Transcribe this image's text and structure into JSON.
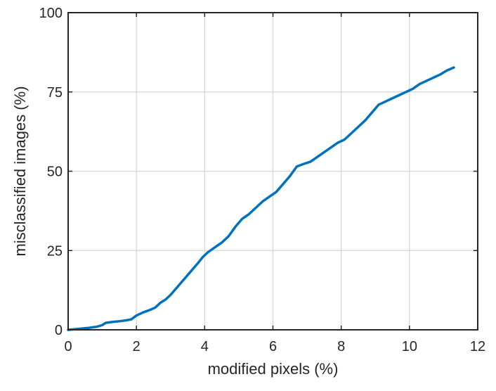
{
  "chart_data": {
    "type": "line",
    "title": "",
    "xlabel": "modified pixels (%)",
    "ylabel": "misclassified images (%)",
    "xlim": [
      0,
      12
    ],
    "ylim": [
      0,
      100
    ],
    "x_ticks": [
      0,
      2,
      4,
      6,
      8,
      10,
      12
    ],
    "y_ticks": [
      0,
      25,
      50,
      75,
      100
    ],
    "grid": true,
    "legend": "none",
    "series": [
      {
        "color": "#0072BD",
        "x": [
          0.0,
          0.3,
          0.6,
          0.85,
          1.0,
          1.1,
          1.3,
          1.5,
          1.7,
          1.85,
          2.0,
          2.2,
          2.4,
          2.55,
          2.7,
          2.85,
          3.0,
          3.2,
          3.4,
          3.6,
          3.8,
          3.95,
          4.1,
          4.3,
          4.5,
          4.7,
          4.9,
          5.1,
          5.3,
          5.5,
          5.7,
          5.9,
          6.1,
          6.3,
          6.5,
          6.7,
          6.9,
          7.1,
          7.3,
          7.5,
          7.7,
          7.9,
          8.1,
          8.3,
          8.5,
          8.7,
          8.9,
          9.1,
          9.3,
          9.5,
          9.7,
          9.9,
          10.1,
          10.3,
          10.5,
          10.7,
          10.9,
          11.1,
          11.3
        ],
        "y": [
          0.0,
          0.3,
          0.6,
          1.0,
          1.5,
          2.2,
          2.5,
          2.7,
          3.0,
          3.3,
          4.5,
          5.5,
          6.3,
          7.0,
          8.5,
          9.5,
          11.0,
          13.5,
          16.0,
          18.5,
          21.0,
          23.0,
          24.5,
          26.0,
          27.5,
          29.5,
          32.5,
          35.0,
          36.5,
          38.5,
          40.5,
          42.0,
          43.5,
          46.0,
          48.5,
          51.5,
          52.3,
          53.0,
          54.5,
          56.0,
          57.5,
          59.0,
          60.0,
          62.0,
          64.0,
          66.0,
          68.5,
          71.0,
          72.0,
          73.0,
          74.0,
          75.0,
          76.0,
          77.5,
          78.5,
          79.5,
          80.5,
          81.8,
          82.7
        ]
      }
    ]
  }
}
